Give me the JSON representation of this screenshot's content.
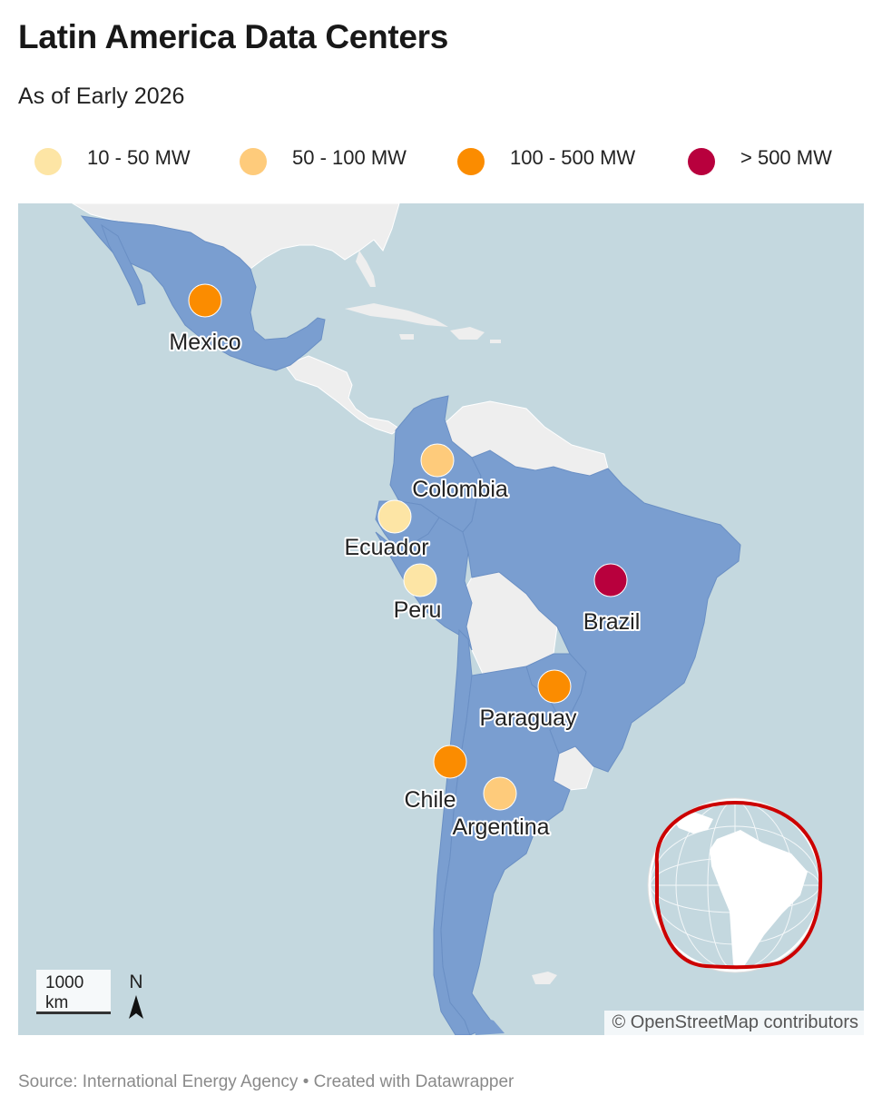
{
  "header": {
    "title": "Latin America Data Centers",
    "subtitle": "As of Early 2026"
  },
  "legend": [
    {
      "label": "10 - 50 MW",
      "color": "#fde5a5"
    },
    {
      "label": "50 - 100 MW",
      "color": "#fecb7b"
    },
    {
      "label": "100 - 500 MW",
      "color": "#fb8c00"
    },
    {
      "label": "> 500 MW",
      "color": "#b8003d"
    }
  ],
  "colors": {
    "ocean": "#c4d8df",
    "land": "#eeeeee",
    "highlight": "#7a9ed0",
    "inset_ring": "#cc0000"
  },
  "markers": [
    {
      "country": "Mexico",
      "category": "100 - 500 MW"
    },
    {
      "country": "Colombia",
      "category": "50 - 100 MW"
    },
    {
      "country": "Ecuador",
      "category": "10 - 50 MW"
    },
    {
      "country": "Peru",
      "category": "10 - 50 MW"
    },
    {
      "country": "Brazil",
      "category": "> 500 MW"
    },
    {
      "country": "Paraguay",
      "category": "100 - 500 MW"
    },
    {
      "country": "Chile",
      "category": "100 - 500 MW"
    },
    {
      "country": "Argentina",
      "category": "50 - 100 MW"
    }
  ],
  "scale_bar": {
    "value": "1000",
    "unit": "km"
  },
  "north_arrow": {
    "label": "N",
    "icon": "north-arrow-icon"
  },
  "inset": {
    "icon": "globe-locator-icon"
  },
  "attribution": "© OpenStreetMap contributors",
  "footer": {
    "source": "Source: International Energy Agency • Created with Datawrapper"
  }
}
